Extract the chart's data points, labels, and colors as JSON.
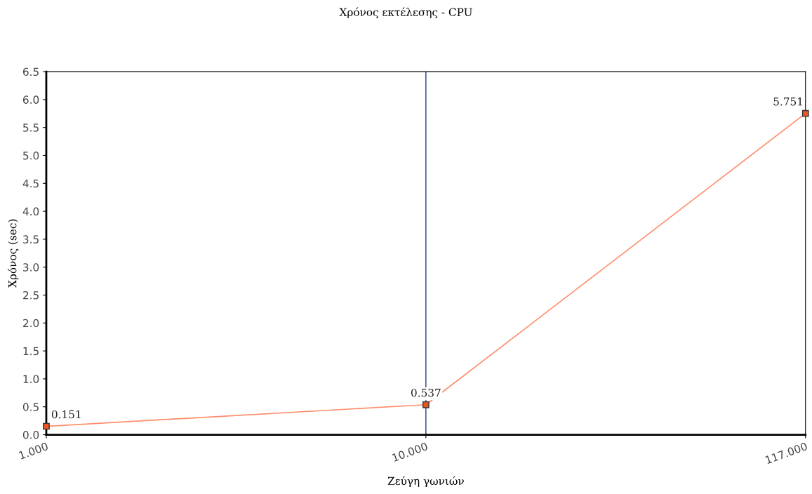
{
  "chart_data": {
    "type": "line",
    "title": "Χρόνος εκτέλεσης - CPU",
    "xlabel": "Ζεύγη γωνιών",
    "ylabel": "Χρόνος (sec)",
    "categories": [
      "1.000",
      "10.000",
      "117.000"
    ],
    "series": [
      {
        "color": "#ff8c69",
        "values": [
          0.151,
          0.537,
          5.751
        ]
      }
    ],
    "ylim": [
      0,
      6.5
    ],
    "yticks": [
      {
        "value": 0,
        "label": "0.0"
      },
      0.5,
      {
        "value": 1,
        "label": "1.0"
      },
      1.5,
      {
        "value": 2,
        "label": "2.0"
      },
      2.5,
      {
        "value": 3,
        "label": "3.0"
      },
      3.5,
      {
        "value": 4,
        "label": "4.0"
      },
      4.5,
      {
        "value": 5,
        "label": "5.0"
      },
      5.5,
      {
        "value": 6,
        "label": "6.0"
      },
      6.5
    ],
    "ref_lines": [
      {
        "axis": "x",
        "value": "10.000",
        "color": "#1f3f7f",
        "line_style": "solid"
      }
    ],
    "data_labels": true,
    "marker": "square",
    "line_style": "solid",
    "grid": false,
    "legend": false
  }
}
